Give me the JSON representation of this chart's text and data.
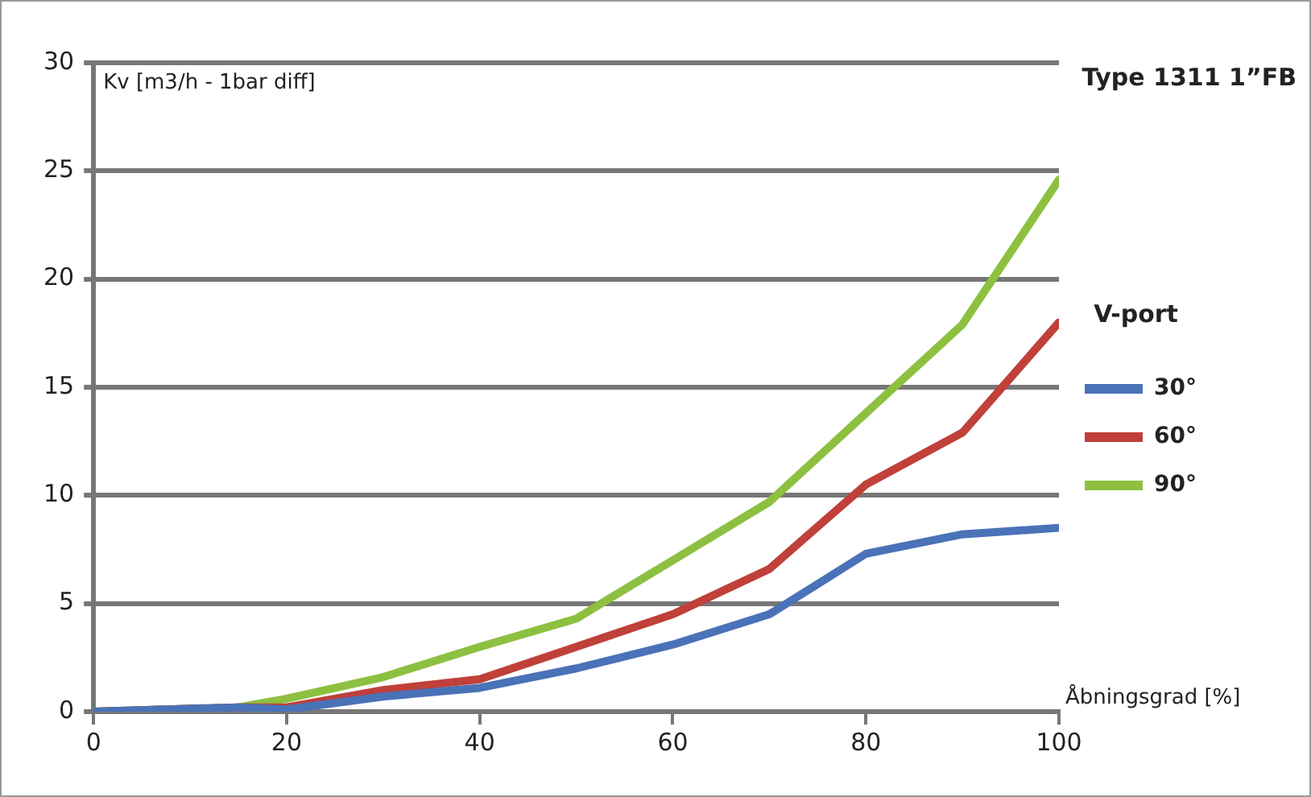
{
  "chart_data": {
    "type": "line",
    "title": "Type 1311 1”FB",
    "xlabel": "Åbningsgrad [%]",
    "ylabel": "Kv [m3/h - 1bar diff]",
    "legend_title": "V-port",
    "x": [
      0,
      15,
      20,
      30,
      40,
      50,
      60,
      70,
      80,
      90,
      100
    ],
    "series": [
      {
        "name": "30°",
        "color": "#4a72b8",
        "values": [
          0,
          0.2,
          0.1,
          0.7,
          1.1,
          2,
          3.1,
          4.5,
          7.3,
          8.2,
          8.5
        ]
      },
      {
        "name": "60°",
        "color": "#c0403a",
        "values": [
          0,
          0.2,
          0.2,
          1.0,
          1.5,
          3,
          4.5,
          6.6,
          10.5,
          12.9,
          18
        ]
      },
      {
        "name": "90°",
        "color": "#8dc040",
        "values": [
          0,
          0.2,
          0.6,
          1.6,
          3,
          4.3,
          7,
          9.7,
          13.8,
          17.9,
          24.6
        ]
      }
    ],
    "xlim": [
      0,
      100
    ],
    "xticks": [
      0,
      20,
      40,
      60,
      80,
      100
    ],
    "ylim": [
      0,
      30
    ],
    "yticks": [
      0,
      5,
      10,
      15,
      20,
      25,
      30
    ],
    "grid": "y",
    "legend": "right",
    "marker": "none",
    "line_style": "solid"
  }
}
